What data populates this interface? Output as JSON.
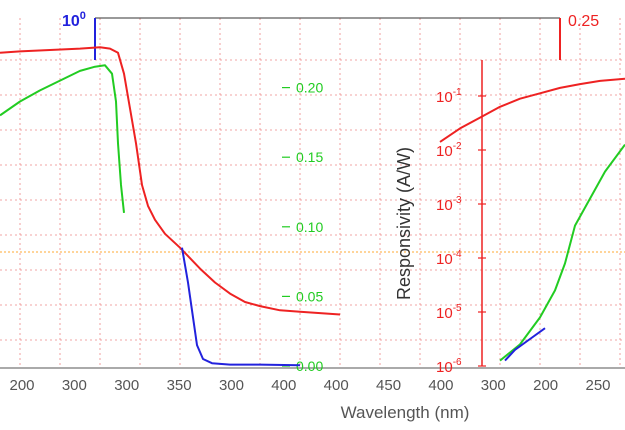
{
  "chart_data": {
    "type": "line",
    "xlabel": "Wavelength (nm)",
    "ylabel": "Responsivity (A/W)",
    "x_tick_labels": [
      "200",
      "300",
      "300",
      "350",
      "300",
      "400",
      "400",
      "450",
      "400",
      "300",
      "200",
      "250"
    ],
    "left_axis": {
      "scale": "log",
      "top_label": "10",
      "top_exponent": "0",
      "color": "#2222dd"
    },
    "right_axis": {
      "top_label": "0.25",
      "color": "#ee2222"
    },
    "linear_axis": {
      "ylim": [
        0.0,
        0.25
      ],
      "ticks": [
        "0.20",
        "0.15",
        "0.10",
        "0.05",
        "0.00"
      ],
      "color": "#22cc22"
    },
    "log_axis": {
      "ylim": [
        -6,
        0
      ],
      "ticks": [
        {
          "base": "10",
          "exp": "-1"
        },
        {
          "base": "10",
          "exp": "-2"
        },
        {
          "base": "10",
          "exp": "-3"
        },
        {
          "base": "10",
          "exp": "-4"
        },
        {
          "base": "10",
          "exp": "-5"
        },
        {
          "base": "10",
          "exp": "-6"
        }
      ],
      "color": "#ee2222"
    },
    "series": [
      {
        "color": "#ee2222",
        "axis": "linear",
        "points": [
          [
            0,
            0.225
          ],
          [
            20,
            0.226
          ],
          [
            50,
            0.227
          ],
          [
            80,
            0.228
          ],
          [
            100,
            0.229
          ],
          [
            110,
            0.228
          ],
          [
            118,
            0.225
          ],
          [
            124,
            0.21
          ],
          [
            130,
            0.185
          ],
          [
            136,
            0.16
          ],
          [
            142,
            0.13
          ],
          [
            148,
            0.115
          ],
          [
            155,
            0.105
          ],
          [
            165,
            0.095
          ],
          [
            180,
            0.085
          ],
          [
            200,
            0.07
          ],
          [
            215,
            0.06
          ],
          [
            230,
            0.052
          ],
          [
            245,
            0.046
          ],
          [
            260,
            0.043
          ],
          [
            280,
            0.04
          ],
          [
            300,
            0.039
          ],
          [
            320,
            0.038
          ],
          [
            340,
            0.037
          ]
        ]
      },
      {
        "color": "#22cc22",
        "axis": "linear",
        "points": [
          [
            0,
            0.18
          ],
          [
            20,
            0.19
          ],
          [
            40,
            0.198
          ],
          [
            60,
            0.205
          ],
          [
            80,
            0.212
          ],
          [
            95,
            0.215
          ],
          [
            105,
            0.216
          ],
          [
            112,
            0.21
          ],
          [
            116,
            0.19
          ],
          [
            118,
            0.16
          ],
          [
            121,
            0.13
          ],
          [
            124,
            0.11
          ]
        ]
      },
      {
        "color": "#2222dd",
        "axis": "linear",
        "points": [
          [
            182,
            0.085
          ],
          [
            188,
            0.06
          ],
          [
            193,
            0.035
          ],
          [
            197,
            0.015
          ],
          [
            203,
            0.005
          ],
          [
            212,
            0.002
          ],
          [
            230,
            0.001
          ],
          [
            260,
            0.001
          ],
          [
            300,
            0.0005
          ]
        ]
      },
      {
        "color": "#ee2222",
        "axis": "log",
        "points": [
          [
            440,
            -1.85
          ],
          [
            460,
            -1.6
          ],
          [
            480,
            -1.4
          ],
          [
            500,
            -1.2
          ],
          [
            520,
            -1.05
          ],
          [
            540,
            -0.95
          ],
          [
            560,
            -0.85
          ],
          [
            580,
            -0.78
          ],
          [
            600,
            -0.72
          ],
          [
            625,
            -0.68
          ]
        ]
      },
      {
        "color": "#22cc22",
        "axis": "log",
        "points": [
          [
            500,
            -5.9
          ],
          [
            520,
            -5.6
          ],
          [
            540,
            -5.1
          ],
          [
            555,
            -4.6
          ],
          [
            565,
            -4.1
          ],
          [
            575,
            -3.4
          ],
          [
            590,
            -2.9
          ],
          [
            605,
            -2.4
          ],
          [
            625,
            -1.9
          ]
        ]
      },
      {
        "color": "#2222dd",
        "axis": "log",
        "points": [
          [
            505,
            -5.9
          ],
          [
            515,
            -5.7
          ],
          [
            530,
            -5.5
          ],
          [
            545,
            -5.3
          ]
        ]
      }
    ]
  }
}
